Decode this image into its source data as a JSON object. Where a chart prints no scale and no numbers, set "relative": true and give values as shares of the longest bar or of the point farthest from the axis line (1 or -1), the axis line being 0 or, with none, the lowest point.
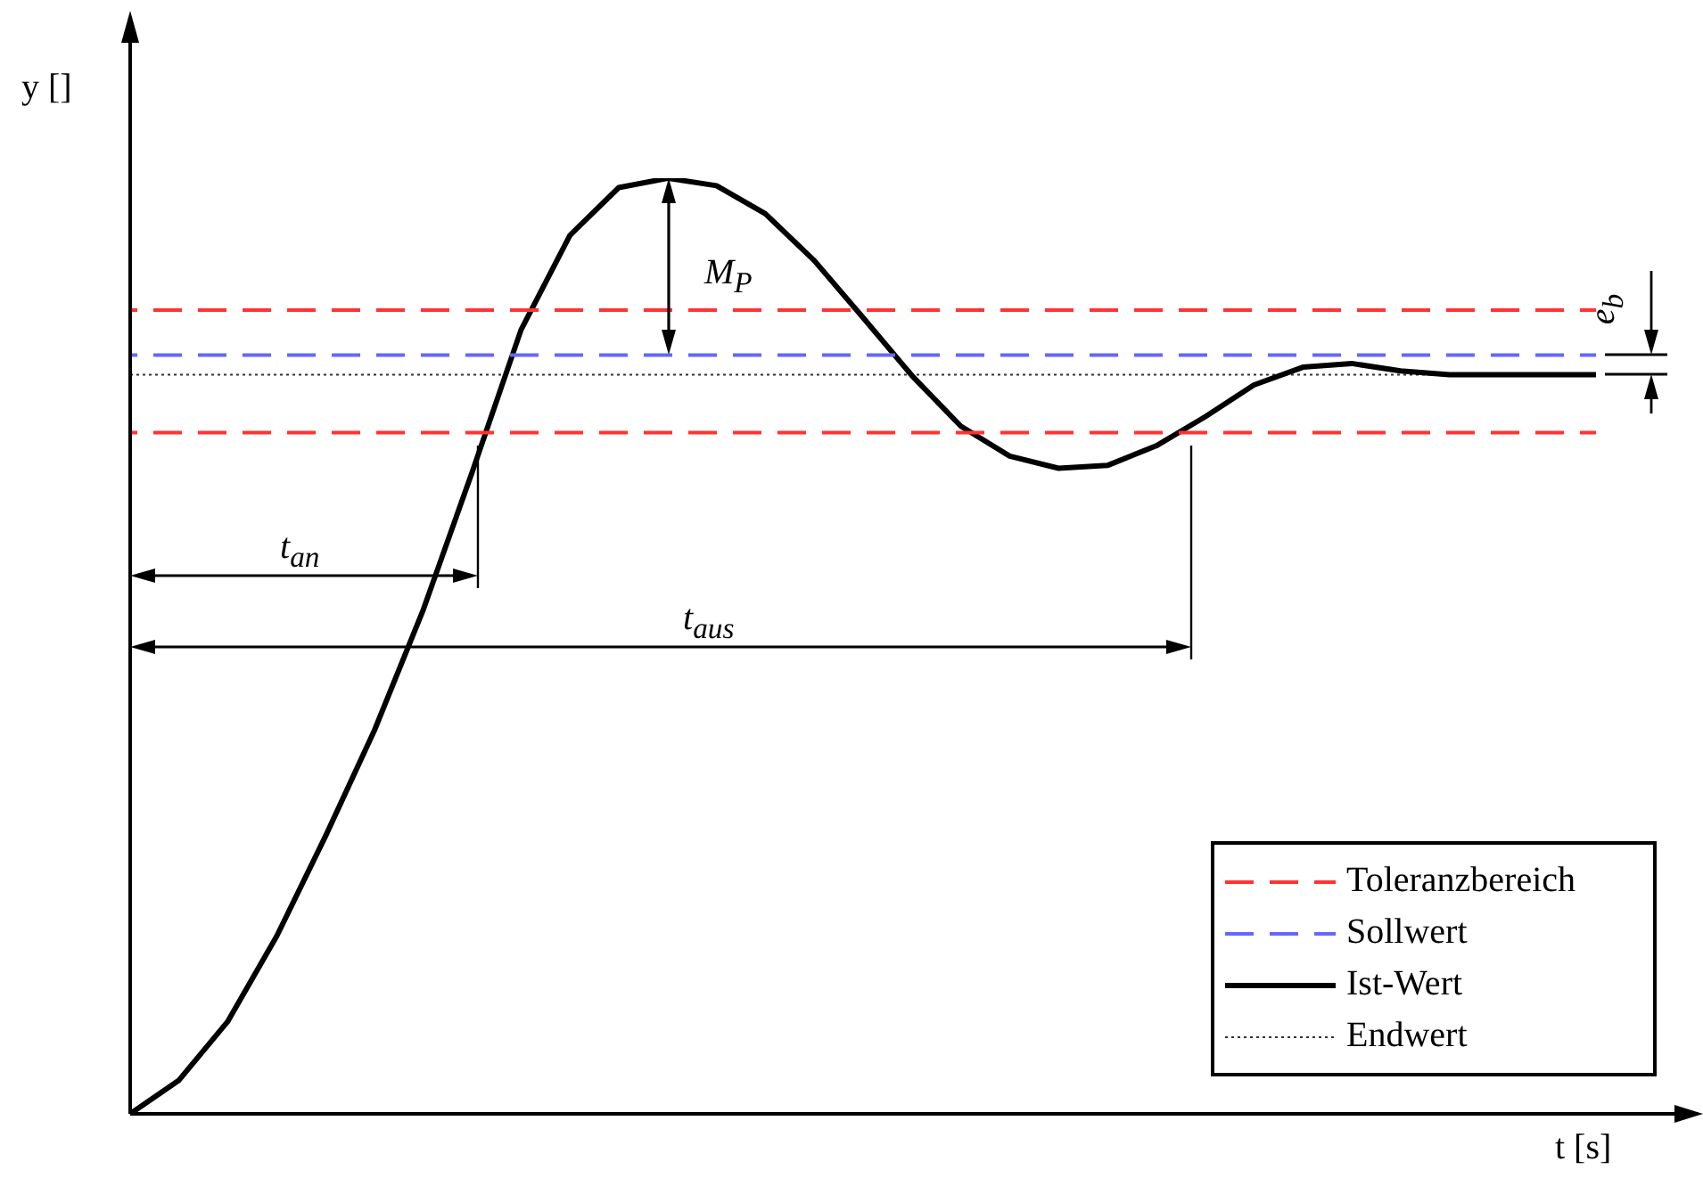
{
  "chart_data": {
    "type": "line",
    "relative": true,
    "xlabel": "t [s]",
    "ylabel": "y []",
    "legend": "bottom right",
    "marker": "none",
    "categories": [
      null,
      null,
      null,
      null,
      null,
      null,
      null,
      null,
      null,
      null,
      null,
      null,
      null,
      null,
      null,
      null,
      null,
      null,
      null,
      null,
      null,
      null,
      null,
      null,
      null,
      null,
      null,
      null,
      null,
      null,
      null
    ],
    "series": [
      {
        "name": "Toleranzbereich",
        "color": "#ff3333",
        "line_style": "dashed",
        "values": [
          0.859,
          0.859,
          0.859,
          0.859,
          0.859,
          0.859,
          0.859,
          0.859,
          0.859,
          0.859,
          0.859,
          0.859,
          0.859,
          0.859,
          0.859,
          0.859,
          0.859,
          0.859,
          0.859,
          0.859,
          0.859,
          0.859,
          0.859,
          0.859,
          0.859,
          0.859,
          0.859,
          0.859,
          0.859,
          0.859,
          0.859
        ]
      },
      {
        "color": "#ff3333",
        "line_style": "dashed",
        "values": [
          0.728,
          0.728,
          0.728,
          0.728,
          0.728,
          0.728,
          0.728,
          0.728,
          0.728,
          0.728,
          0.728,
          0.728,
          0.728,
          0.728,
          0.728,
          0.728,
          0.728,
          0.728,
          0.728,
          0.728,
          0.728,
          0.728,
          0.728,
          0.728,
          0.728,
          0.728,
          0.728,
          0.728,
          0.728,
          0.728,
          0.728
        ]
      },
      {
        "name": "Sollwert",
        "color": "#6666ff",
        "line_style": "dashed",
        "values": [
          0.811,
          0.811,
          0.811,
          0.811,
          0.811,
          0.811,
          0.811,
          0.811,
          0.811,
          0.811,
          0.811,
          0.811,
          0.811,
          0.811,
          0.811,
          0.811,
          0.811,
          0.811,
          0.811,
          0.811,
          0.811,
          0.811,
          0.811,
          0.811,
          0.811,
          0.811,
          0.811,
          0.811,
          0.811,
          0.811,
          0.811
        ]
      },
      {
        "name": "Ist-Wert",
        "color": "#000000",
        "line_style": "solid",
        "values": [
          0,
          0.036,
          0.099,
          0.19,
          0.297,
          0.41,
          0.539,
          0.686,
          0.838,
          0.939,
          0.99,
          1,
          0.992,
          0.962,
          0.912,
          0.851,
          0.789,
          0.735,
          0.703,
          0.69,
          0.693,
          0.714,
          0.745,
          0.779,
          0.798,
          0.802,
          0.794,
          0.79,
          0.79,
          0.79,
          0.79
        ]
      },
      {
        "name": "Endwert",
        "color": "#333333",
        "line_style": "dotted",
        "values": [
          0.79,
          0.79,
          0.79,
          0.79,
          0.79,
          0.79,
          0.79,
          0.79,
          0.79,
          0.79,
          0.79,
          0.79,
          0.79,
          0.79,
          0.79,
          0.79,
          0.79,
          0.79,
          0.79,
          0.79,
          0.79,
          0.79,
          0.79,
          0.79,
          0.79,
          0.79,
          0.79,
          0.79,
          0.79,
          0.79,
          0.79
        ]
      }
    ],
    "annotations": [
      "t$_{an}$",
      "t$_{aus}$",
      "M$_{P}$",
      "e$_{b}$"
    ]
  }
}
